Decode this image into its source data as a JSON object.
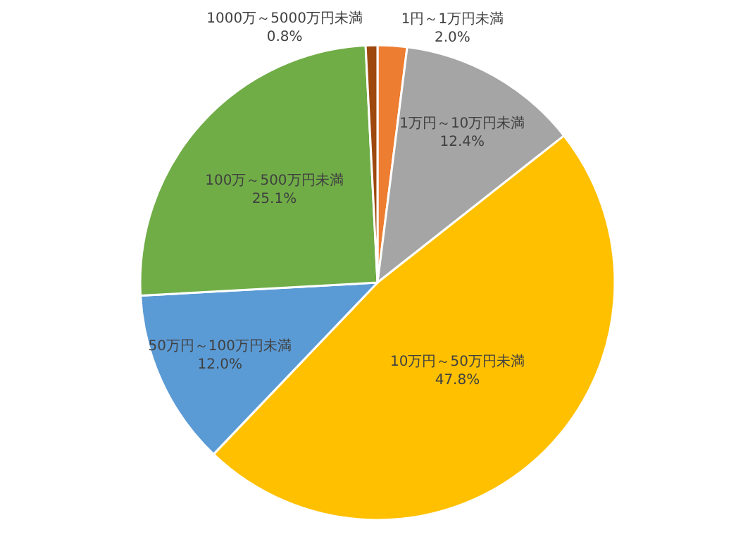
{
  "chart_data": {
    "type": "pie",
    "categories": [
      "1円～1万円未満",
      "1万円～10万円未満",
      "10万円～50万円未満",
      "50万円～100万円未満",
      "100万～500万円未満",
      "1000万～5000万円未満"
    ],
    "values": [
      2.0,
      12.4,
      47.8,
      12.0,
      25.1,
      0.8
    ],
    "value_labels": [
      "2.0%",
      "12.4%",
      "47.8%",
      "12.0%",
      "25.1%",
      "0.8%"
    ],
    "colors": [
      "#ed7d31",
      "#a5a5a5",
      "#ffc000",
      "#5b9bd5",
      "#70ad47",
      "#9e480e"
    ],
    "legend": false
  }
}
